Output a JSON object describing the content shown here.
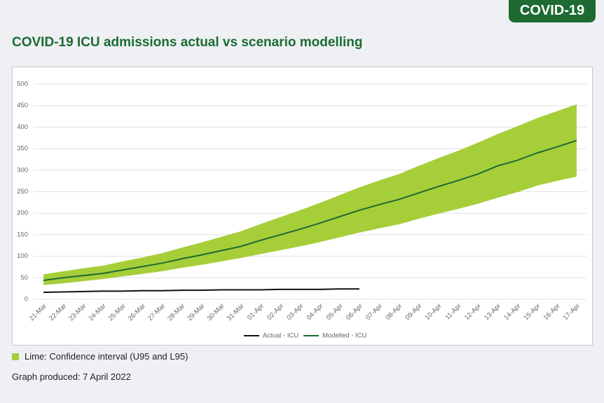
{
  "badge": "COVID-19",
  "note": "Lime: Confidence interval (U95 and L95)",
  "produced": "Graph produced: 7 April 2022",
  "chart_data": {
    "type": "line",
    "title": "COVID-19 ICU admissions actual vs scenario modelling",
    "categories": [
      "21-Mar",
      "22-Mar",
      "23-Mar",
      "24-Mar",
      "25-Mar",
      "26-Mar",
      "27-Mar",
      "28-Mar",
      "29-Mar",
      "30-Mar",
      "31-Mar",
      "01-Apr",
      "02-Apr",
      "03-Apr",
      "04-Apr",
      "05-Apr",
      "06-Apr",
      "07-Apr",
      "08-Apr",
      "09-Apr",
      "10-Apr",
      "11-Apr",
      "12-Apr",
      "13-Apr",
      "14-Apr",
      "15-Apr",
      "16-Apr",
      "17-Apr"
    ],
    "series": [
      {
        "name": "Actual - ICU",
        "color": "#111111",
        "values": [
          16,
          17,
          18,
          19,
          19,
          20,
          20,
          21,
          21,
          22,
          22,
          22,
          23,
          23,
          23,
          24,
          24,
          null,
          null,
          null,
          null,
          null,
          null,
          null,
          null,
          null,
          null,
          null
        ]
      },
      {
        "name": "Modelled - ICU",
        "color": "#1d6b32",
        "values": [
          44,
          50,
          55,
          60,
          68,
          76,
          84,
          94,
          103,
          113,
          123,
          137,
          150,
          163,
          177,
          192,
          207,
          220,
          232,
          247,
          262,
          276,
          291,
          310,
          323,
          340,
          354,
          369
        ]
      }
    ],
    "band": {
      "color": "#a6ce39",
      "upper": [
        58,
        65,
        72,
        78,
        88,
        97,
        107,
        120,
        132,
        145,
        158,
        175,
        191,
        207,
        224,
        242,
        260,
        276,
        291,
        310,
        328,
        345,
        364,
        384,
        402,
        421,
        437,
        453
      ],
      "lower": [
        33,
        37,
        42,
        47,
        53,
        59,
        65,
        73,
        80,
        88,
        96,
        105,
        114,
        123,
        133,
        144,
        155,
        165,
        174,
        187,
        199,
        210,
        222,
        236,
        249,
        264,
        275,
        285
      ]
    },
    "ylim": [
      0,
      500
    ],
    "yticks": [
      0,
      50,
      100,
      150,
      200,
      250,
      300,
      350,
      400,
      450,
      500
    ],
    "grid": true,
    "legend": "bottom"
  }
}
